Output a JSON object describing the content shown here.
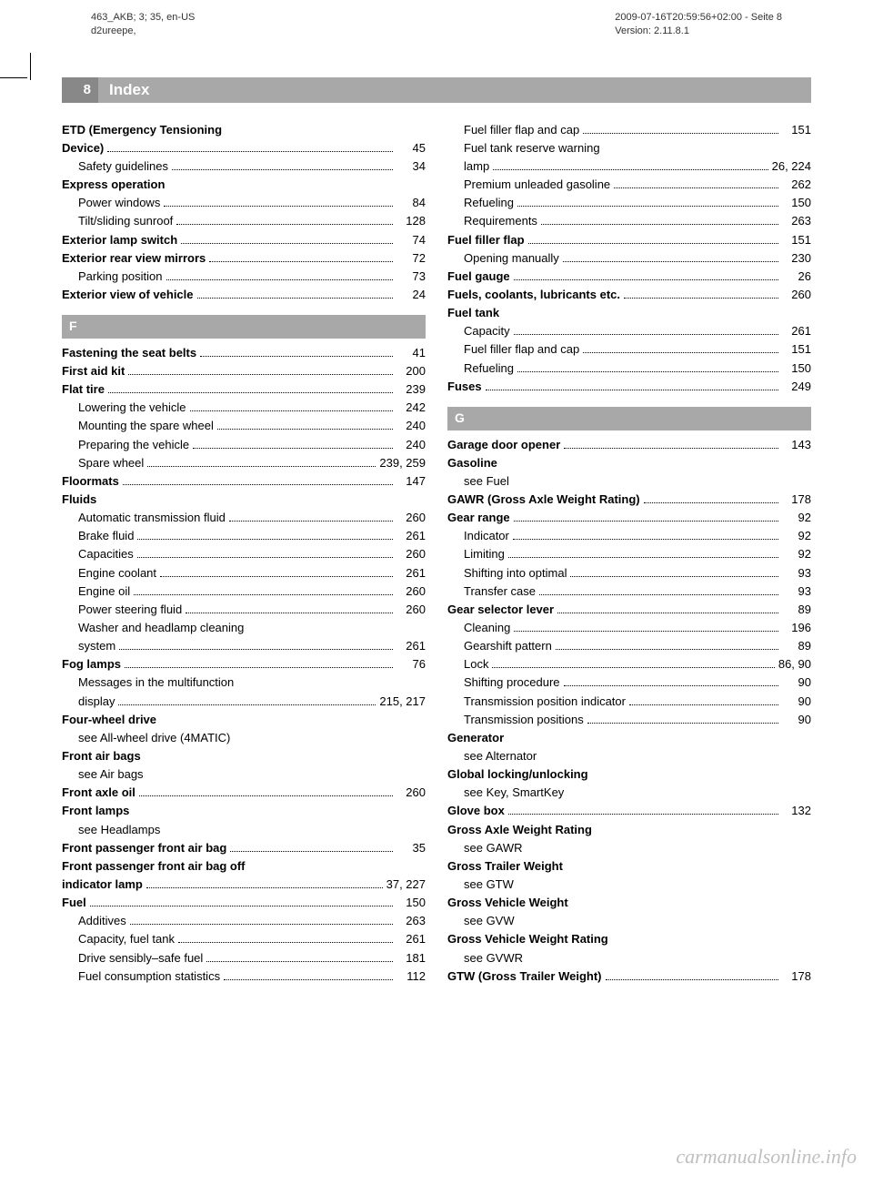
{
  "meta": {
    "left_line1": "463_AKB; 3; 35, en-US",
    "left_line2": "d2ureepe,",
    "right_line1": "2009-07-16T20:59:56+02:00 - Seite 8",
    "right_line2": "Version: 2.11.8.1"
  },
  "header": {
    "page_number": "8",
    "title": "Index"
  },
  "colors": {
    "header_dark": "#888888",
    "header_light": "#a8a8a8",
    "text": "#000000"
  },
  "left_column": [
    {
      "type": "multiline",
      "bold": true,
      "line1": "ETD (Emergency Tensioning",
      "line2": "Device)",
      "page": "45"
    },
    {
      "type": "entry",
      "sub": true,
      "label": "Safety guidelines",
      "page": "34"
    },
    {
      "type": "heading",
      "bold": true,
      "label": "Express operation"
    },
    {
      "type": "entry",
      "sub": true,
      "label": "Power windows",
      "page": "84"
    },
    {
      "type": "entry",
      "sub": true,
      "label": "Tilt/sliding sunroof",
      "page": "128"
    },
    {
      "type": "entry",
      "bold": true,
      "label": "Exterior lamp switch",
      "page": "74"
    },
    {
      "type": "entry",
      "bold": true,
      "label": "Exterior rear view mirrors",
      "page": "72"
    },
    {
      "type": "entry",
      "sub": true,
      "label": "Parking position",
      "page": "73"
    },
    {
      "type": "entry",
      "bold": true,
      "label": "Exterior view of vehicle",
      "page": "24"
    },
    {
      "type": "section",
      "letter": "F"
    },
    {
      "type": "entry",
      "bold": true,
      "label": "Fastening the seat belts",
      "page": "41"
    },
    {
      "type": "entry",
      "bold": true,
      "label": "First aid kit",
      "page": "200"
    },
    {
      "type": "entry",
      "bold": true,
      "label": "Flat tire",
      "page": "239"
    },
    {
      "type": "entry",
      "sub": true,
      "label": "Lowering the vehicle",
      "page": "242"
    },
    {
      "type": "entry",
      "sub": true,
      "label": "Mounting the spare wheel",
      "page": "240"
    },
    {
      "type": "entry",
      "sub": true,
      "label": "Preparing the vehicle",
      "page": "240"
    },
    {
      "type": "entry",
      "sub": true,
      "label": "Spare wheel",
      "page": "239, 259"
    },
    {
      "type": "entry",
      "bold": true,
      "label": "Floormats",
      "page": "147"
    },
    {
      "type": "heading",
      "bold": true,
      "label": "Fluids"
    },
    {
      "type": "entry",
      "sub": true,
      "label": "Automatic transmission fluid",
      "page": "260"
    },
    {
      "type": "entry",
      "sub": true,
      "label": "Brake fluid",
      "page": "261"
    },
    {
      "type": "entry",
      "sub": true,
      "label": "Capacities",
      "page": "260"
    },
    {
      "type": "entry",
      "sub": true,
      "label": "Engine coolant",
      "page": "261"
    },
    {
      "type": "entry",
      "sub": true,
      "label": "Engine oil",
      "page": "260"
    },
    {
      "type": "entry",
      "sub": true,
      "label": "Power steering fluid",
      "page": "260"
    },
    {
      "type": "multiline",
      "sub": true,
      "line1": "Washer and headlamp cleaning",
      "line2": "system",
      "page": "261"
    },
    {
      "type": "entry",
      "bold": true,
      "label": "Fog lamps",
      "page": "76"
    },
    {
      "type": "multiline",
      "sub": true,
      "line1": "Messages in the multifunction",
      "line2": "display",
      "page": "215, 217"
    },
    {
      "type": "heading",
      "bold": true,
      "label": "Four-wheel drive"
    },
    {
      "type": "see",
      "label": "see All-wheel drive (4MATIC)"
    },
    {
      "type": "heading",
      "bold": true,
      "label": "Front air bags"
    },
    {
      "type": "see",
      "label": "see Air bags"
    },
    {
      "type": "entry",
      "bold": true,
      "label": "Front axle oil",
      "page": "260"
    },
    {
      "type": "heading",
      "bold": true,
      "label": "Front lamps"
    },
    {
      "type": "see",
      "label": "see Headlamps"
    },
    {
      "type": "entry",
      "bold": true,
      "label": "Front passenger front air bag",
      "page": "35"
    },
    {
      "type": "multiline",
      "bold": true,
      "line1": "Front passenger front air bag off",
      "line2": "indicator lamp",
      "page": "37, 227"
    },
    {
      "type": "entry",
      "bold": true,
      "label": "Fuel",
      "page": "150"
    },
    {
      "type": "entry",
      "sub": true,
      "label": "Additives",
      "page": "263"
    },
    {
      "type": "entry",
      "sub": true,
      "label": "Capacity, fuel tank",
      "page": "261"
    },
    {
      "type": "entry",
      "sub": true,
      "label": "Drive sensibly–safe fuel",
      "page": "181"
    },
    {
      "type": "entry",
      "sub": true,
      "label": "Fuel consumption statistics",
      "page": "112"
    }
  ],
  "right_column": [
    {
      "type": "entry",
      "sub": true,
      "label": "Fuel filler flap and cap",
      "page": "151"
    },
    {
      "type": "multiline",
      "sub": true,
      "line1": "Fuel tank reserve warning",
      "line2": "lamp",
      "page": "26, 224"
    },
    {
      "type": "entry",
      "sub": true,
      "label": "Premium unleaded gasoline",
      "page": "262"
    },
    {
      "type": "entry",
      "sub": true,
      "label": "Refueling",
      "page": "150"
    },
    {
      "type": "entry",
      "sub": true,
      "label": "Requirements",
      "page": "263"
    },
    {
      "type": "entry",
      "bold": true,
      "label": "Fuel filler flap",
      "page": "151"
    },
    {
      "type": "entry",
      "sub": true,
      "label": "Opening manually",
      "page": "230"
    },
    {
      "type": "entry",
      "bold": true,
      "label": "Fuel gauge",
      "page": "26"
    },
    {
      "type": "entry",
      "bold": true,
      "label": "Fuels, coolants, lubricants etc.",
      "page": "260"
    },
    {
      "type": "heading",
      "bold": true,
      "label": "Fuel tank"
    },
    {
      "type": "entry",
      "sub": true,
      "label": "Capacity",
      "page": "261"
    },
    {
      "type": "entry",
      "sub": true,
      "label": "Fuel filler flap and cap",
      "page": "151"
    },
    {
      "type": "entry",
      "sub": true,
      "label": "Refueling",
      "page": "150"
    },
    {
      "type": "entry",
      "bold": true,
      "label": "Fuses",
      "page": "249"
    },
    {
      "type": "section",
      "letter": "G"
    },
    {
      "type": "entry",
      "bold": true,
      "label": "Garage door opener",
      "page": "143"
    },
    {
      "type": "heading",
      "bold": true,
      "label": "Gasoline"
    },
    {
      "type": "see",
      "label": "see Fuel"
    },
    {
      "type": "entry",
      "bold": true,
      "label": "GAWR (Gross Axle Weight Rating)",
      "page": "178"
    },
    {
      "type": "entry",
      "bold": true,
      "label": "Gear range",
      "page": "92"
    },
    {
      "type": "entry",
      "sub": true,
      "label": "Indicator",
      "page": "92"
    },
    {
      "type": "entry",
      "sub": true,
      "label": "Limiting",
      "page": "92"
    },
    {
      "type": "entry",
      "sub": true,
      "label": "Shifting into optimal",
      "page": "93"
    },
    {
      "type": "entry",
      "sub": true,
      "label": "Transfer case",
      "page": "93"
    },
    {
      "type": "entry",
      "bold": true,
      "label": "Gear selector lever",
      "page": "89"
    },
    {
      "type": "entry",
      "sub": true,
      "label": "Cleaning",
      "page": "196"
    },
    {
      "type": "entry",
      "sub": true,
      "label": "Gearshift pattern",
      "page": "89"
    },
    {
      "type": "entry",
      "sub": true,
      "label": "Lock",
      "page": "86, 90"
    },
    {
      "type": "entry",
      "sub": true,
      "label": "Shifting procedure",
      "page": "90"
    },
    {
      "type": "entry",
      "sub": true,
      "label": "Transmission position indicator",
      "page": "90"
    },
    {
      "type": "entry",
      "sub": true,
      "label": "Transmission positions",
      "page": "90"
    },
    {
      "type": "heading",
      "bold": true,
      "label": "Generator"
    },
    {
      "type": "see",
      "label": "see Alternator"
    },
    {
      "type": "heading",
      "bold": true,
      "label": "Global locking/unlocking"
    },
    {
      "type": "see",
      "label": "see Key, SmartKey"
    },
    {
      "type": "entry",
      "bold": true,
      "label": "Glove box",
      "page": "132"
    },
    {
      "type": "heading",
      "bold": true,
      "label": "Gross Axle Weight Rating"
    },
    {
      "type": "see",
      "label": "see GAWR"
    },
    {
      "type": "heading",
      "bold": true,
      "label": "Gross Trailer Weight"
    },
    {
      "type": "see",
      "label": "see GTW"
    },
    {
      "type": "heading",
      "bold": true,
      "label": "Gross Vehicle Weight"
    },
    {
      "type": "see",
      "label": "see GVW"
    },
    {
      "type": "heading",
      "bold": true,
      "label": "Gross Vehicle Weight Rating"
    },
    {
      "type": "see",
      "label": "see GVWR"
    },
    {
      "type": "entry",
      "bold": true,
      "label": "GTW (Gross Trailer Weight)",
      "page": "178"
    }
  ],
  "watermark": "carmanualsonline.info"
}
